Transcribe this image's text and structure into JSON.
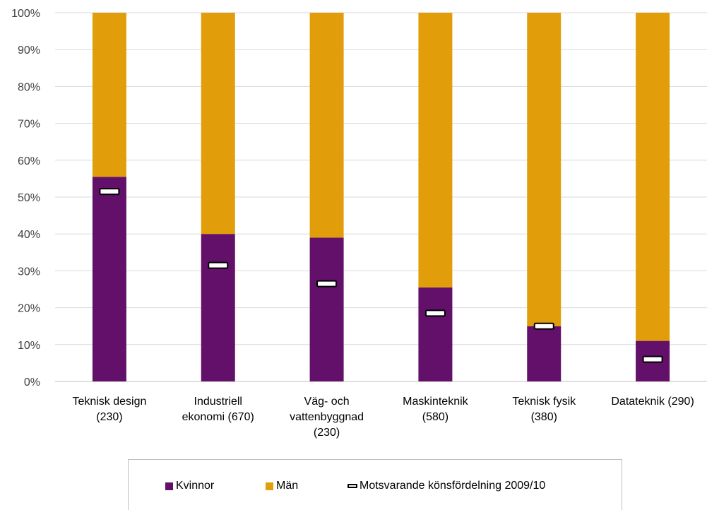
{
  "chart_data": {
    "type": "bar",
    "stacked": true,
    "categories": [
      [
        "Teknisk design",
        "(230)"
      ],
      [
        "Industriell",
        "ekonomi (670)"
      ],
      [
        "Väg- och",
        "vattenbyggnad",
        "(230)"
      ],
      [
        "Maskinteknik",
        "(580)"
      ],
      [
        "Teknisk fysik",
        "(380)"
      ],
      [
        "Datateknik (290)"
      ]
    ],
    "series": [
      {
        "name": "Kvinnor",
        "color": "#63106a",
        "values": [
          55.5,
          40,
          39,
          25.5,
          15,
          11
        ]
      },
      {
        "name": "Män",
        "color": "#e29e0a",
        "values": [
          44.5,
          60,
          61,
          74.5,
          85,
          89
        ]
      }
    ],
    "marker_series": {
      "name": "Motsvarande könsfördelning 2009/10",
      "values": [
        51.5,
        31.5,
        26.5,
        18.5,
        15,
        6
      ]
    },
    "ylim": [
      0,
      100
    ],
    "yticks": [
      "0%",
      "10%",
      "20%",
      "30%",
      "40%",
      "50%",
      "60%",
      "70%",
      "80%",
      "90%",
      "100%"
    ],
    "grid": true,
    "legend_position": "bottom"
  }
}
